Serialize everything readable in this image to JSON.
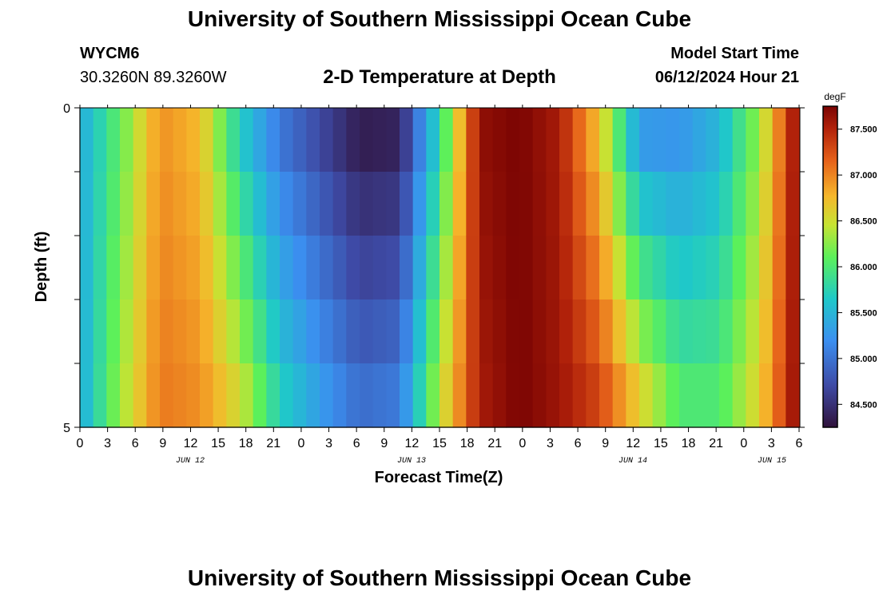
{
  "header": {
    "title": "University of Southern Mississippi Ocean Cube",
    "station": "WYCM6",
    "coordinates": "30.3260N  89.3260W",
    "subtitle": "2-D Temperature at Depth",
    "model_start_label": "Model Start Time",
    "model_start_value": "06/12/2024 Hour 21"
  },
  "footer": {
    "title": "University of Southern Mississippi Ocean Cube"
  },
  "chart_data": {
    "type": "heatmap",
    "xlabel": "Forecast Time(Z)",
    "ylabel": "Depth (ft)",
    "x_tick_labels": [
      "0",
      "3",
      "6",
      "9",
      "12",
      "15",
      "18",
      "21",
      "0",
      "3",
      "6",
      "9",
      "12",
      "15",
      "18",
      "21",
      "0",
      "3",
      "6",
      "9",
      "12",
      "15",
      "18",
      "21",
      "0",
      "3",
      "6"
    ],
    "date_labels": [
      "JUN 12",
      "JUN 13",
      "JUN 14",
      "JUN 15"
    ],
    "y_tick_labels": [
      "0",
      "5"
    ],
    "ylim": [
      0,
      5
    ],
    "colorbar": {
      "unit": "degF",
      "ticks": [
        "84.500",
        "85.000",
        "85.500",
        "86.000",
        "86.500",
        "87.000",
        "87.500"
      ],
      "range": [
        84.25,
        87.75
      ]
    },
    "depth_rows": 5,
    "time_hours_per_column": 3,
    "time_profile_row0": [
      85.4,
      86.1,
      86.95,
      86.75,
      85.7,
      85.05,
      84.7,
      84.35,
      84.4,
      85.8,
      87.65,
      87.75,
      87.55,
      86.7,
      85.3,
      85.25,
      85.5,
      86.3,
      87.75
    ],
    "time_profile_row4": [
      85.4,
      86.3,
      87.05,
      86.95,
      86.5,
      85.7,
      85.3,
      84.95,
      85.05,
      86.4,
      87.55,
      87.75,
      87.6,
      87.3,
      86.6,
      86.0,
      86.0,
      86.6,
      87.75
    ]
  }
}
